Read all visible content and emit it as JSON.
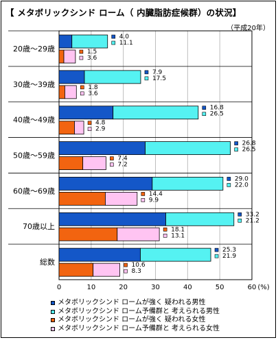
{
  "title": "【 メタボリックシンド ローム（ 内臓脂肪症候群）の状況】",
  "subtitle": "（平成20年）",
  "chart_data": {
    "type": "bar",
    "orientation": "horizontal",
    "categories": [
      "20歳～29歳",
      "30歳～39歳",
      "40歳～49歳",
      "50歳～59歳",
      "60歳～69歳",
      "70歳以上",
      "総数"
    ],
    "groups": [
      {
        "name": "男性",
        "stacked": true,
        "series": [
          {
            "name": "メタボリックシンド ロームが強く 疑われる男性",
            "color": "#1457c8",
            "values": [
              4.0,
              7.9,
              16.8,
              26.8,
              29.0,
              33.2,
              25.3
            ]
          },
          {
            "name": "メタボリックシンド ローム予備群と 考えられる男性",
            "color": "#55f2f2",
            "values": [
              11.1,
              17.5,
              26.5,
              26.5,
              22.0,
              21.2,
              21.9
            ]
          }
        ]
      },
      {
        "name": "女性",
        "stacked": true,
        "series": [
          {
            "name": "メタボリックシンド ロームが強く 疑われる女性",
            "color": "#f26410",
            "values": [
              1.5,
              1.8,
              4.8,
              7.4,
              14.4,
              18.1,
              10.6
            ]
          },
          {
            "name": "メタボリックシンド ローム予備群と 考えられる女性",
            "color": "#ffc4f2",
            "values": [
              3.6,
              3.6,
              2.9,
              7.2,
              9.9,
              13.1,
              8.3
            ]
          }
        ]
      }
    ],
    "value_labels": [
      [
        "4.0",
        "11.1",
        "1.5",
        "3.6"
      ],
      [
        "7.9",
        "17.5",
        "1.8",
        "3.6"
      ],
      [
        "16.8",
        "26.5",
        "4.8",
        "2.9"
      ],
      [
        "26.8",
        "26.5",
        "7.4",
        "7.2"
      ],
      [
        "29.0",
        "22.0",
        "14.4",
        "9.9"
      ],
      [
        "33.2",
        "21.2",
        "18.1",
        "13.1"
      ],
      [
        "25.3",
        "21.9",
        "10.6",
        "8.3"
      ]
    ],
    "xlim": [
      0,
      60
    ],
    "xticks": [
      "0",
      "10",
      "20",
      "30",
      "40",
      "50",
      "60"
    ],
    "xunit": "(%)",
    "grid": true,
    "legend_position": "bottom"
  },
  "legend": [
    {
      "label": "メタボリックシンド ロームが強く 疑われる男性",
      "color": "#1457c8"
    },
    {
      "label": "メタボリックシンド ローム予備群と 考えられる男性",
      "color": "#55f2f2"
    },
    {
      "label": "メタボリックシンド ロームが強く 疑われる女性",
      "color": "#f26410"
    },
    {
      "label": "メタボリックシンド ローム予備群と 考えられる女性",
      "color": "#ffc4f2"
    }
  ]
}
